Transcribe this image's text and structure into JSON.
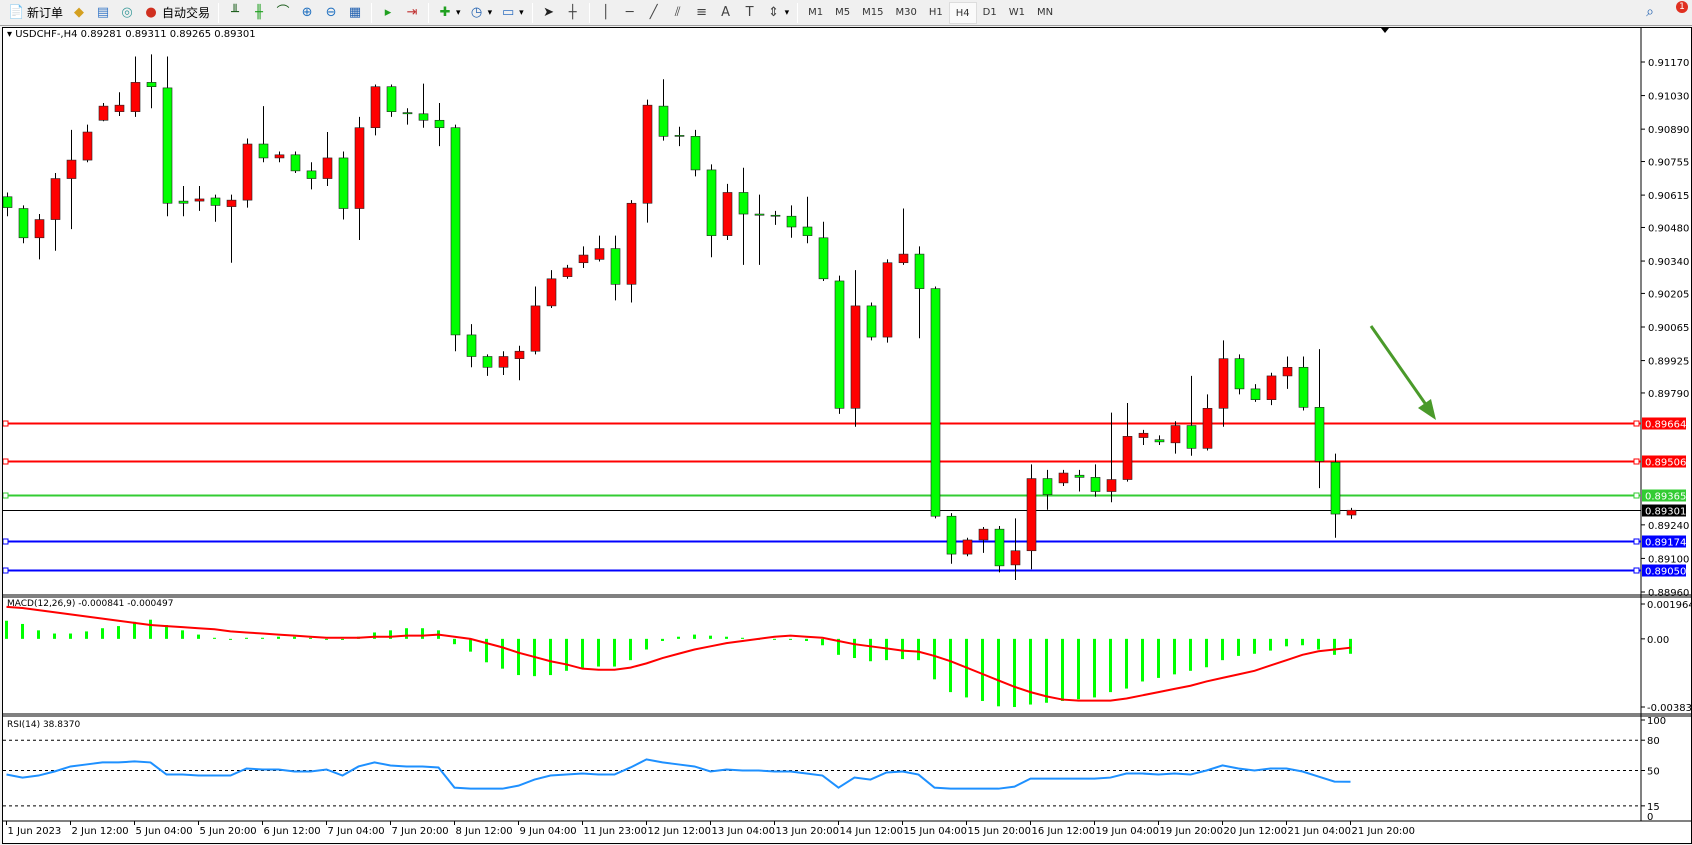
{
  "toolbar": {
    "items": [
      {
        "icon": "new-order-icon",
        "label": "新订单",
        "glyph": "📄",
        "color": "#2a8a2a"
      },
      {
        "icon": "market-watch-icon",
        "label": "",
        "glyph": "◆",
        "color": "#d4a020"
      },
      {
        "icon": "navigator-icon",
        "label": "",
        "glyph": "▤",
        "color": "#3a7ac8"
      },
      {
        "icon": "signals-icon",
        "label": "",
        "glyph": "◎",
        "color": "#3a9a9a"
      },
      {
        "icon": "auto-trading-icon",
        "label": "自动交易",
        "glyph": "●",
        "color": "#d03020"
      },
      {
        "sep": true
      },
      {
        "icon": "bar-chart-icon",
        "label": "",
        "glyph": "╨",
        "color": "#206020"
      },
      {
        "icon": "candlestick-icon",
        "label": "",
        "glyph": "╫",
        "color": "#20a020"
      },
      {
        "icon": "line-chart-icon",
        "label": "",
        "glyph": "⌒",
        "color": "#206020"
      },
      {
        "icon": "zoom-in-icon",
        "label": "",
        "glyph": "⊕",
        "color": "#2070c0"
      },
      {
        "icon": "zoom-out-icon",
        "label": "",
        "glyph": "⊖",
        "color": "#2070c0"
      },
      {
        "icon": "tile-windows-icon",
        "label": "",
        "glyph": "▦",
        "color": "#2060b0"
      },
      {
        "sep": true
      },
      {
        "icon": "chart-shift-icon",
        "label": "",
        "glyph": "▸",
        "color": "#20a020"
      },
      {
        "icon": "autoscroll-icon",
        "label": "",
        "glyph": "⇥",
        "color": "#c03030"
      },
      {
        "sep": true
      },
      {
        "icon": "indicators-icon",
        "label": "▾",
        "glyph": "✚",
        "color": "#20a020"
      },
      {
        "icon": "periods-icon",
        "label": "▾",
        "glyph": "◷",
        "color": "#2060b0"
      },
      {
        "icon": "templates-icon",
        "label": "▾",
        "glyph": "▭",
        "color": "#3070c0"
      },
      {
        "sep": true
      },
      {
        "icon": "cursor-icon",
        "label": "",
        "glyph": "➤",
        "color": "#222"
      },
      {
        "icon": "crosshair-icon",
        "label": "",
        "glyph": "┼",
        "color": "#444"
      },
      {
        "sep": true
      },
      {
        "icon": "vertical-line-icon",
        "label": "",
        "glyph": "│",
        "color": "#444"
      },
      {
        "icon": "horizontal-line-icon",
        "label": "",
        "glyph": "─",
        "color": "#444"
      },
      {
        "icon": "trendline-icon",
        "label": "",
        "glyph": "╱",
        "color": "#444"
      },
      {
        "icon": "equidistant-channel-icon",
        "label": "",
        "glyph": "⫽",
        "color": "#444"
      },
      {
        "icon": "fibonacci-icon",
        "label": "",
        "glyph": "≡",
        "color": "#444"
      },
      {
        "icon": "text-icon",
        "label": "",
        "glyph": "A",
        "color": "#444"
      },
      {
        "icon": "text-label-icon",
        "label": "",
        "glyph": "T",
        "color": "#444"
      },
      {
        "icon": "arrows-icon",
        "label": "▾",
        "glyph": "⇕",
        "color": "#444"
      },
      {
        "sep": true
      }
    ],
    "timeframes": [
      "M1",
      "M5",
      "M15",
      "M30",
      "H1",
      "H4",
      "D1",
      "W1",
      "MN"
    ],
    "active_timeframe": "H4",
    "notification_count": "1"
  },
  "chart_header": "USDCHF-,H4  0.89281 0.89311 0.89265 0.89301",
  "macd_label": "MACD(12,26,9) -0.000841 -0.000497",
  "rsi_label": "RSI(14) 38.8370",
  "colors": {
    "bull": "#ff0000",
    "bear": "#00ff00",
    "macd_hist": "#00ff00",
    "macd_signal": "#ff0000",
    "rsi": "#1e90ff",
    "arrow": "#4a9a2a"
  },
  "chart_data": {
    "type": "candlestick",
    "symbol": "USDCHF-",
    "timeframe": "H4",
    "price_ticks": [
      "0.91170",
      "0.91030",
      "0.90890",
      "0.90755",
      "0.90615",
      "0.90480",
      "0.90340",
      "0.90205",
      "0.90065",
      "0.89925",
      "0.89790",
      "0.89240",
      "0.89100",
      "0.88960"
    ],
    "ylim": [
      0.8896,
      0.9117
    ],
    "time_labels": [
      "1 Jun 2023",
      "2 Jun 12:00",
      "5 Jun 04:00",
      "5 Jun 20:00",
      "6 Jun 12:00",
      "7 Jun 04:00",
      "7 Jun 20:00",
      "8 Jun 12:00",
      "9 Jun 04:00",
      "11 Jun 23:00",
      "12 Jun 12:00",
      "13 Jun 04:00",
      "13 Jun 20:00",
      "14 Jun 12:00",
      "15 Jun 04:00",
      "15 Jun 20:00",
      "16 Jun 12:00",
      "19 Jun 04:00",
      "19 Jun 20:00",
      "20 Jun 12:00",
      "21 Jun 04:00",
      "21 Jun 20:00"
    ],
    "bars_per_time_label": 4,
    "candles_ohlc": [
      [
        0.90608,
        0.90626,
        0.90527,
        0.90563
      ],
      [
        0.90559,
        0.90572,
        0.90414,
        0.90437
      ],
      [
        0.90437,
        0.90536,
        0.90347,
        0.90513
      ],
      [
        0.90513,
        0.90707,
        0.90383,
        0.90684
      ],
      [
        0.90684,
        0.90887,
        0.90473,
        0.90761
      ],
      [
        0.90761,
        0.90909,
        0.90752,
        0.90878
      ],
      [
        0.90927,
        0.90999,
        0.90923,
        0.90986
      ],
      [
        0.90963,
        0.91044,
        0.90945,
        0.9099
      ],
      [
        0.90963,
        0.91193,
        0.90941,
        0.91085
      ],
      [
        0.91085,
        0.91202,
        0.90977,
        0.91067
      ],
      [
        0.91062,
        0.91193,
        0.90527,
        0.90581
      ],
      [
        0.9059,
        0.90653,
        0.90527,
        0.90581
      ],
      [
        0.9059,
        0.90653,
        0.90549,
        0.90599
      ],
      [
        0.90603,
        0.90617,
        0.90504,
        0.90572
      ],
      [
        0.90567,
        0.90617,
        0.90333,
        0.90594
      ],
      [
        0.90594,
        0.90851,
        0.90563,
        0.90828
      ],
      [
        0.90828,
        0.90986,
        0.90752,
        0.9077
      ],
      [
        0.9077,
        0.90797,
        0.90752,
        0.90783
      ],
      [
        0.90783,
        0.90797,
        0.90707,
        0.90716
      ],
      [
        0.90716,
        0.90752,
        0.90639,
        0.90684
      ],
      [
        0.90684,
        0.90878,
        0.90653,
        0.9077
      ],
      [
        0.9077,
        0.90797,
        0.90513,
        0.90559
      ],
      [
        0.90559,
        0.90941,
        0.90428,
        0.90896
      ],
      [
        0.90896,
        0.91076,
        0.90864,
        0.91067
      ],
      [
        0.91067,
        0.91076,
        0.90941,
        0.90963
      ],
      [
        0.90959,
        0.90977,
        0.90909,
        0.90954
      ],
      [
        0.90954,
        0.9108,
        0.90896,
        0.90927
      ],
      [
        0.90927,
        0.90999,
        0.90819,
        0.90896
      ],
      [
        0.90896,
        0.90909,
        0.89964,
        0.90032
      ],
      [
        0.90032,
        0.90077,
        0.89897,
        0.89942
      ],
      [
        0.89942,
        0.89951,
        0.89861,
        0.89897
      ],
      [
        0.89897,
        0.89964,
        0.89865,
        0.89942
      ],
      [
        0.89933,
        0.89987,
        0.89843,
        0.89964
      ],
      [
        0.89964,
        0.90234,
        0.89951,
        0.90153
      ],
      [
        0.90153,
        0.90302,
        0.90144,
        0.90266
      ],
      [
        0.90275,
        0.90324,
        0.90266,
        0.90311
      ],
      [
        0.90333,
        0.90401,
        0.90311,
        0.90365
      ],
      [
        0.90347,
        0.90446,
        0.90338,
        0.90392
      ],
      [
        0.90392,
        0.90446,
        0.90176,
        0.90243
      ],
      [
        0.90243,
        0.90594,
        0.90167,
        0.90581
      ],
      [
        0.90581,
        0.91013,
        0.905,
        0.9099
      ],
      [
        0.90986,
        0.91098,
        0.90842,
        0.9086
      ],
      [
        0.90864,
        0.909,
        0.90819,
        0.9086
      ],
      [
        0.9086,
        0.90887,
        0.90693,
        0.9072
      ],
      [
        0.9072,
        0.90743,
        0.90356,
        0.90446
      ],
      [
        0.90446,
        0.90662,
        0.90428,
        0.90626
      ],
      [
        0.90626,
        0.90729,
        0.90324,
        0.90536
      ],
      [
        0.90536,
        0.90617,
        0.90324,
        0.90531
      ],
      [
        0.90531,
        0.90549,
        0.90491,
        0.90527
      ],
      [
        0.90527,
        0.90572,
        0.90437,
        0.90482
      ],
      [
        0.90482,
        0.90608,
        0.90414,
        0.90446
      ],
      [
        0.90437,
        0.90504,
        0.90257,
        0.90266
      ],
      [
        0.90257,
        0.90279,
        0.89703,
        0.89726
      ],
      [
        0.89726,
        0.90302,
        0.89649,
        0.90153
      ],
      [
        0.90153,
        0.90167,
        0.90009,
        0.90023
      ],
      [
        0.90023,
        0.90347,
        0.9,
        0.90333
      ],
      [
        0.90333,
        0.90559,
        0.90324,
        0.90369
      ],
      [
        0.90369,
        0.90401,
        0.90018,
        0.90225
      ],
      [
        0.90225,
        0.90234,
        0.89267,
        0.89276
      ],
      [
        0.89276,
        0.89289,
        0.89078,
        0.89118
      ],
      [
        0.89118,
        0.89186,
        0.89109,
        0.89177
      ],
      [
        0.89177,
        0.89231,
        0.89123,
        0.89222
      ],
      [
        0.89222,
        0.89235,
        0.89042,
        0.89069
      ],
      [
        0.89073,
        0.89267,
        0.8901,
        0.89132
      ],
      [
        0.89132,
        0.89492,
        0.89055,
        0.89433
      ],
      [
        0.89433,
        0.89469,
        0.89303,
        0.89366
      ],
      [
        0.89415,
        0.89469,
        0.89402,
        0.89456
      ],
      [
        0.89447,
        0.89469,
        0.89379,
        0.89438
      ],
      [
        0.89438,
        0.89492,
        0.89357,
        0.89379
      ],
      [
        0.89379,
        0.89708,
        0.89334,
        0.89429
      ],
      [
        0.89429,
        0.89748,
        0.8942,
        0.89609
      ],
      [
        0.89604,
        0.89636,
        0.89573,
        0.89622
      ],
      [
        0.89595,
        0.89613,
        0.89573,
        0.89586
      ],
      [
        0.89582,
        0.89672,
        0.89537,
        0.89654
      ],
      [
        0.89654,
        0.89861,
        0.89528,
        0.89559
      ],
      [
        0.89559,
        0.89784,
        0.8955,
        0.89726
      ],
      [
        0.89726,
        0.90009,
        0.89649,
        0.89933
      ],
      [
        0.89933,
        0.89951,
        0.89784,
        0.89807
      ],
      [
        0.89807,
        0.89827,
        0.89753,
        0.89762
      ],
      [
        0.89762,
        0.89874,
        0.89739,
        0.89861
      ],
      [
        0.89861,
        0.89942,
        0.89807,
        0.89897
      ],
      [
        0.89897,
        0.89942,
        0.89717,
        0.8973
      ],
      [
        0.8973,
        0.89973,
        0.89393,
        0.89505
      ],
      [
        0.89501,
        0.89537,
        0.89186,
        0.89285
      ],
      [
        0.89281,
        0.89311,
        0.89265,
        0.89301
      ]
    ],
    "current_price": {
      "label": "0.89301",
      "value": 0.89301
    },
    "hlines": [
      {
        "label": "0.89664",
        "value": 0.89664,
        "color": "#ff0000"
      },
      {
        "label": "0.89506",
        "value": 0.89506,
        "color": "#ff0000"
      },
      {
        "label": "0.89365",
        "value": 0.89365,
        "color": "#33cc33"
      },
      {
        "label": "0.89174",
        "value": 0.89174,
        "color": "#0000ff"
      },
      {
        "label": "0.89050",
        "value": 0.8905,
        "color": "#0000ff"
      }
    ],
    "annotation": {
      "type": "arrow",
      "direction": "down-right",
      "color": "#4a9a2a"
    },
    "macd": {
      "ticks": [
        "0.001964",
        "0.00",
        "-0.003839"
      ],
      "ylim": [
        -0.003839,
        0.001964
      ],
      "histogram": [
        0.00102,
        0.00084,
        0.00048,
        0.0003,
        0.0003,
        0.00042,
        0.0006,
        0.00072,
        0.00096,
        0.00108,
        0.00078,
        0.00048,
        0.00024,
        6e-05,
        0,
        6e-05,
        6e-05,
        0.00012,
        0.00012,
        6e-05,
        0,
        -6e-05,
        0.00012,
        0.00036,
        0.00048,
        0.0006,
        0.0006,
        0.00048,
        -0.0003,
        -0.00072,
        -0.00132,
        -0.00168,
        -0.00204,
        -0.0021,
        -0.00204,
        -0.0018,
        -0.00168,
        -0.00156,
        -0.00156,
        -0.0012,
        -0.0006,
        -0.00012,
        0.00012,
        0.00024,
        0.00018,
        0.00012,
        6e-05,
        0,
        0,
        0,
        -0.00012,
        -0.00036,
        -0.0009,
        -0.00108,
        -0.00126,
        -0.0012,
        -0.00114,
        -0.0012,
        -0.00228,
        -0.003,
        -0.0033,
        -0.0035,
        -0.0038,
        -0.00384,
        -0.0037,
        -0.0036,
        -0.0035,
        -0.0034,
        -0.0033,
        -0.003,
        -0.0028,
        -0.0024,
        -0.0022,
        -0.002,
        -0.0018,
        -0.0016,
        -0.0012,
        -0.00096,
        -0.00084,
        -0.00066,
        -0.00042,
        -0.00036,
        -0.0006,
        -0.0009,
        -0.000841
      ],
      "signal": [
        0.0018,
        0.00174,
        0.00162,
        0.0015,
        0.00138,
        0.00126,
        0.00114,
        0.00102,
        0.0009,
        0.00078,
        0.00072,
        0.00066,
        0.0006,
        0.00054,
        0.00042,
        0.00036,
        0.0003,
        0.00024,
        0.00018,
        0.00012,
        6e-05,
        6e-05,
        6e-05,
        0.00012,
        0.00012,
        0.00018,
        0.00018,
        0.00024,
        0.00012,
        0,
        -0.00024,
        -0.00048,
        -0.00078,
        -0.00102,
        -0.00126,
        -0.00144,
        -0.00168,
        -0.00174,
        -0.00174,
        -0.00162,
        -0.00138,
        -0.00108,
        -0.00084,
        -0.0006,
        -0.00042,
        -0.00024,
        -0.00012,
        0,
        0.00012,
        0.00018,
        0.00012,
        6e-05,
        -0.00012,
        -0.0003,
        -0.00042,
        -0.00054,
        -0.00066,
        -0.00072,
        -0.00096,
        -0.00126,
        -0.00162,
        -0.00198,
        -0.00234,
        -0.0027,
        -0.003,
        -0.00324,
        -0.00342,
        -0.00348,
        -0.00348,
        -0.00348,
        -0.00336,
        -0.00318,
        -0.003,
        -0.00282,
        -0.00264,
        -0.0024,
        -0.0022,
        -0.002,
        -0.0018,
        -0.0015,
        -0.0012,
        -0.0009,
        -0.0007,
        -0.0006,
        -0.000497
      ]
    },
    "rsi": {
      "ticks": [
        "100",
        "80",
        "50",
        "15",
        "0"
      ],
      "levels": [
        80,
        50,
        15
      ],
      "ylim": [
        0,
        100
      ],
      "values": [
        46,
        43,
        45,
        49,
        54,
        56,
        58,
        58,
        59,
        58,
        46,
        46,
        45,
        45,
        45,
        52,
        51,
        51,
        49,
        49,
        51,
        45,
        54,
        58,
        55,
        54,
        54,
        53,
        33,
        32,
        32,
        32,
        35,
        41,
        45,
        46,
        47,
        46,
        46,
        53,
        61,
        58,
        56,
        54,
        49,
        51,
        50,
        50,
        49,
        49,
        47,
        45,
        33,
        43,
        41,
        48,
        49,
        46,
        33,
        32,
        32,
        32,
        32,
        34,
        42,
        42,
        42,
        42,
        42,
        43,
        47,
        47,
        46,
        47,
        46,
        50,
        55,
        52,
        50,
        52,
        52,
        49,
        44,
        39,
        38.837
      ]
    }
  }
}
